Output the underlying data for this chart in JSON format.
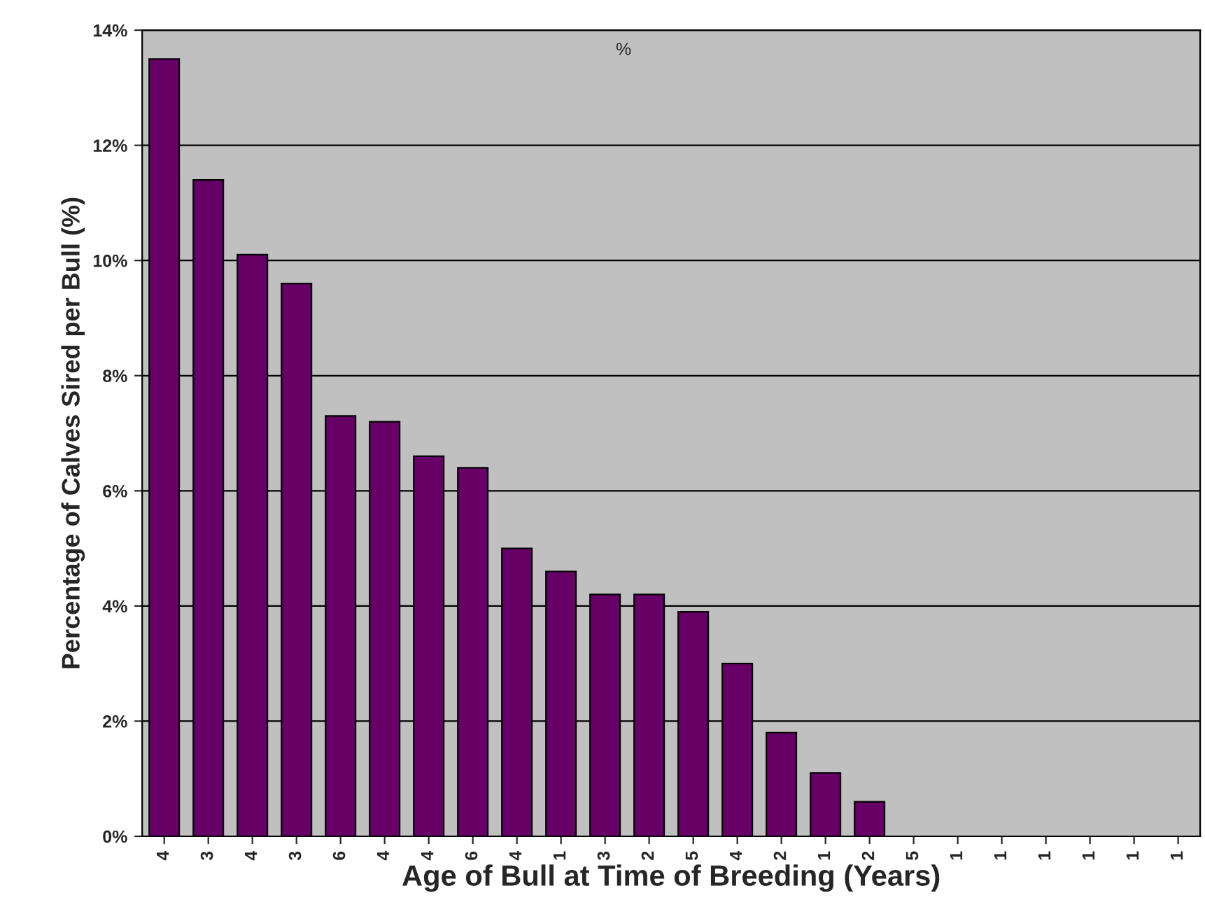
{
  "chart_data": {
    "type": "bar",
    "xlabel": "Age of Bull at Time of Breeding (Years)",
    "ylabel": "Percentage of Calves Sired per Bull (%)",
    "annotations": [
      "%"
    ],
    "categories": [
      "4",
      "3",
      "4",
      "3",
      "6",
      "4",
      "4",
      "6",
      "4",
      "1",
      "3",
      "2",
      "5",
      "4",
      "2",
      "1",
      "2",
      "5",
      "1",
      "1",
      "1",
      "1",
      "1",
      "1"
    ],
    "values": [
      13.5,
      11.4,
      10.1,
      9.6,
      7.3,
      7.2,
      6.6,
      6.4,
      5.0,
      4.6,
      4.2,
      4.2,
      3.9,
      3.0,
      1.8,
      1.1,
      0.6,
      0,
      0,
      0,
      0,
      0,
      0,
      0
    ],
    "color": "#660066",
    "ylim": [
      0,
      14
    ],
    "yticks": [
      {
        "value": 0,
        "label": "0%"
      },
      {
        "value": 2,
        "label": "2%"
      },
      {
        "value": 4,
        "label": "4%"
      },
      {
        "value": 6,
        "label": "6%"
      },
      {
        "value": 8,
        "label": "8%"
      },
      {
        "value": 10,
        "label": "10%"
      },
      {
        "value": 12,
        "label": "12%"
      },
      {
        "value": 14,
        "label": "14%"
      }
    ],
    "grid": "y"
  }
}
